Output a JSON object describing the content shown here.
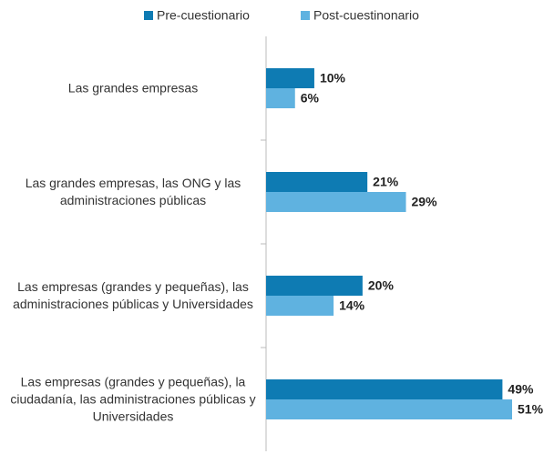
{
  "chart_data": {
    "type": "hbar",
    "categories": [
      "Las grandes empresas",
      "Las grandes empresas, las ONG y las administraciones públicas",
      "Las empresas (grandes y pequeñas), las administraciones públicas y Universidades",
      "Las empresas (grandes y pequeñas), la ciudadanía, las administraciones públicas y Universidades"
    ],
    "series": [
      {
        "name": "Pre-cuestionario",
        "color": "#0e7bb3",
        "values": [
          10,
          21,
          20,
          49
        ],
        "value_labels": [
          "10%",
          "21%",
          "20%",
          "49%"
        ]
      },
      {
        "name": "Post-cuestinonario",
        "color": "#5fb2e0",
        "values": [
          6,
          29,
          14,
          51
        ],
        "value_labels": [
          "6%",
          "29%",
          "14%",
          "51%"
        ]
      }
    ],
    "legend": "top"
  }
}
